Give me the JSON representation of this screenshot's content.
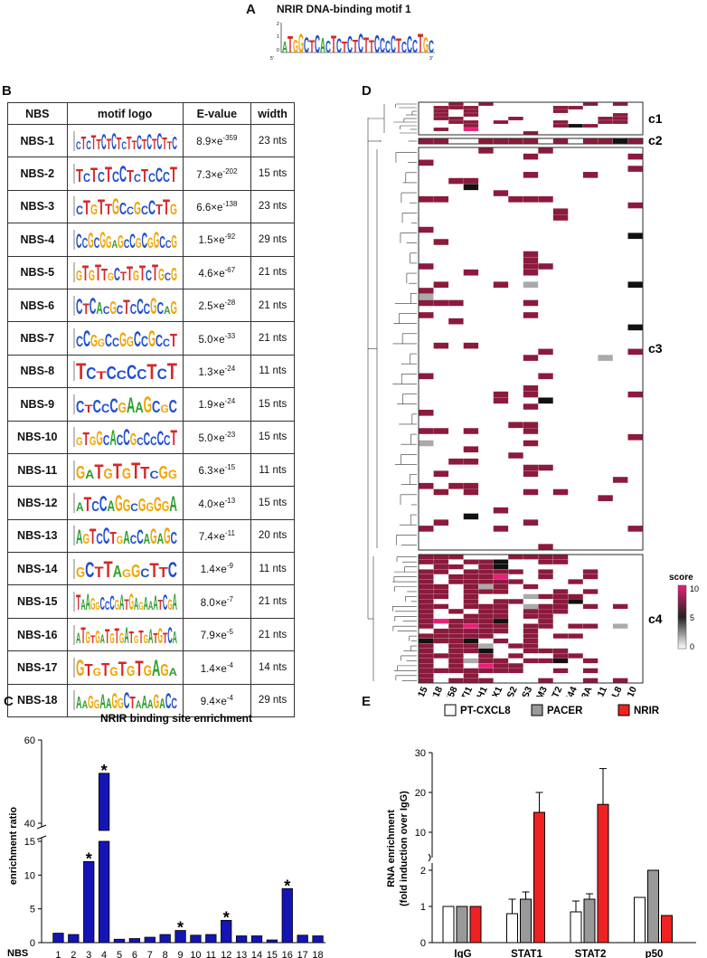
{
  "panelA": {
    "letter": "A",
    "title": "NRIR DNA-binding motif 1",
    "ylabel": "bits",
    "y_ticks": [
      "2",
      "1",
      "0"
    ],
    "x_end5": "5'",
    "x_end3": "3'",
    "motif": "ATGGCTCACTCTCTCTTCCCCTCCCTGC"
  },
  "panelB": {
    "letter": "B",
    "headers": [
      "NBS",
      "motif logo",
      "E-value",
      "width"
    ],
    "rows": [
      {
        "name": "NBS-1",
        "mantissa": "8.9×e",
        "exp": "-359",
        "width": "23 nts",
        "logo": "CTCTTCTCTCTTCTCTCTTC"
      },
      {
        "name": "NBS-2",
        "mantissa": "7.3×e",
        "exp": "-202",
        "width": "15 nts",
        "logo": "TCTCTCCTCTCCCT"
      },
      {
        "name": "NBS-3",
        "mantissa": "6.6×e",
        "exp": "-138",
        "width": "23 nts",
        "logo": "CTGTTGCCGCCTTG"
      },
      {
        "name": "NBS-4",
        "mantissa": "1.5×e",
        "exp": "-92",
        "width": "29 nts",
        "logo": "CCGCGGAGCCGCGGCCG"
      },
      {
        "name": "NBS-5",
        "mantissa": "4.6×e",
        "exp": "-67",
        "width": "21 nts",
        "logo": "GTGTTGCTTGTCTGCG"
      },
      {
        "name": "NBS-6",
        "mantissa": "2.5×e",
        "exp": "-28",
        "width": "21 nts",
        "logo": "CTCACGCTCCCGCAG"
      },
      {
        "name": "NBS-7",
        "mantissa": "5.0×e",
        "exp": "-33",
        "width": "21 nts",
        "logo": "CCGGCCGGCCGCCT"
      },
      {
        "name": "NBS-8",
        "mantissa": "1.3×e",
        "exp": "-24",
        "width": "11 nts",
        "logo": "TCTCCCCTCT"
      },
      {
        "name": "NBS-9",
        "mantissa": "1.9×e",
        "exp": "-24",
        "width": "15 nts",
        "logo": "CTCCCGAAGCGC"
      },
      {
        "name": "NBS-10",
        "mantissa": "5.0×e",
        "exp": "-23",
        "width": "15 nts",
        "logo": "GTGGCACCGCCCCCT"
      },
      {
        "name": "NBS-11",
        "mantissa": "6.3×e",
        "exp": "-15",
        "width": "11 nts",
        "logo": "GATGTGTTCGG"
      },
      {
        "name": "NBS-12",
        "mantissa": "4.0×e",
        "exp": "-13",
        "width": "15 nts",
        "logo": "ATCCAGGCGGGGA"
      },
      {
        "name": "NBS-13",
        "mantissa": "7.4×e",
        "exp": "-11",
        "width": "20 nts",
        "logo": "AGTCCTGACCAGAGC"
      },
      {
        "name": "NBS-14",
        "mantissa": "1.4×e",
        "exp": "-9",
        "width": "11 nts",
        "logo": "GCTTAGGCTTC"
      },
      {
        "name": "NBS-15",
        "mantissa": "8.0×e",
        "exp": "-7",
        "width": "21 nts",
        "logo": "TAAGGCCCGATGAGAAATCGA"
      },
      {
        "name": "NBS-16",
        "mantissa": "7.9×e",
        "exp": "-5",
        "width": "21 nts",
        "logo": "ATGTGATGTGATGTGATGTCA"
      },
      {
        "name": "NBS-17",
        "mantissa": "1.4×e",
        "exp": "-4",
        "width": "14 nts",
        "logo": "GTGTGTGTGAGA"
      },
      {
        "name": "NBS-18",
        "mantissa": "9.4×e",
        "exp": "-4",
        "width": "29 nts",
        "logo": "AAGGAAGGCTAAAGACC"
      }
    ]
  },
  "panelC": {
    "letter": "C",
    "chart_data": {
      "type": "bar",
      "title": "NRIR binding site enrichment",
      "ylabel": "enrichment ratio",
      "xlabel": "NBS",
      "categories": [
        "1",
        "2",
        "3",
        "4",
        "5",
        "6",
        "7",
        "8",
        "9",
        "10",
        "11",
        "12",
        "13",
        "14",
        "15",
        "16",
        "17",
        "18"
      ],
      "values": [
        1.4,
        1.2,
        12.0,
        52.0,
        0.5,
        0.6,
        0.8,
        1.2,
        1.8,
        1.1,
        1.2,
        3.3,
        1.0,
        1.0,
        0.4,
        8.0,
        1.1,
        1.0
      ],
      "significant": [
        3,
        4,
        9,
        12,
        16
      ],
      "star": "*",
      "y_break": {
        "lower": [
          0,
          15
        ],
        "upper": [
          40,
          60
        ]
      },
      "yticks_lower": [
        "0",
        "5",
        "10",
        "15"
      ],
      "yticks_upper": [
        "40",
        "60"
      ],
      "color": "#1515b5"
    }
  },
  "panelD": {
    "letter": "D",
    "genes": [
      "ISG15",
      "USP18",
      "DDX58",
      "EPSTI1",
      "IFIH1",
      "MX1",
      "OAS2",
      "OAS3",
      "IFITM3",
      "IFIT2",
      "IFI44",
      "APOBEC3A",
      "CXCL11",
      "CCL8",
      "CXCL10"
    ],
    "clusters": [
      "c1",
      "c2",
      "c3",
      "c4"
    ],
    "legend_title": "score",
    "legend_ticks": [
      "10",
      "5",
      "0"
    ],
    "colors": {
      "high": "#8b1a3c",
      "mid": "#111111",
      "low": "#aaaaaa",
      "bright": "#e8207a"
    }
  },
  "panelE": {
    "letter": "E",
    "chart_data": {
      "type": "bar",
      "ylabel": "RNA enrichment",
      "ylabel2": "(fold induction over IgG)",
      "categories": [
        "IgG",
        "STAT1",
        "STAT2",
        "p50"
      ],
      "series": [
        {
          "name": "PT-CXCL8",
          "color": "#ffffff",
          "values": [
            1.0,
            0.8,
            0.85,
            1.25
          ],
          "errors": [
            0,
            0.4,
            0.3,
            0
          ]
        },
        {
          "name": "PACER",
          "color": "#999999",
          "values": [
            1.0,
            1.2,
            1.2,
            2.0
          ],
          "errors": [
            0,
            0.2,
            0.15,
            0
          ]
        },
        {
          "name": "NRIR",
          "color": "#ee2222",
          "values": [
            1.0,
            15.0,
            17.0,
            0.75
          ],
          "errors": [
            0,
            5.0,
            9.0,
            0
          ]
        }
      ],
      "y_break": {
        "lower": [
          0,
          2
        ],
        "upper": [
          5,
          30
        ]
      },
      "yticks_lower": [
        "0",
        "1",
        "2"
      ],
      "yticks_upper": [
        "10",
        "20",
        "30"
      ]
    }
  }
}
